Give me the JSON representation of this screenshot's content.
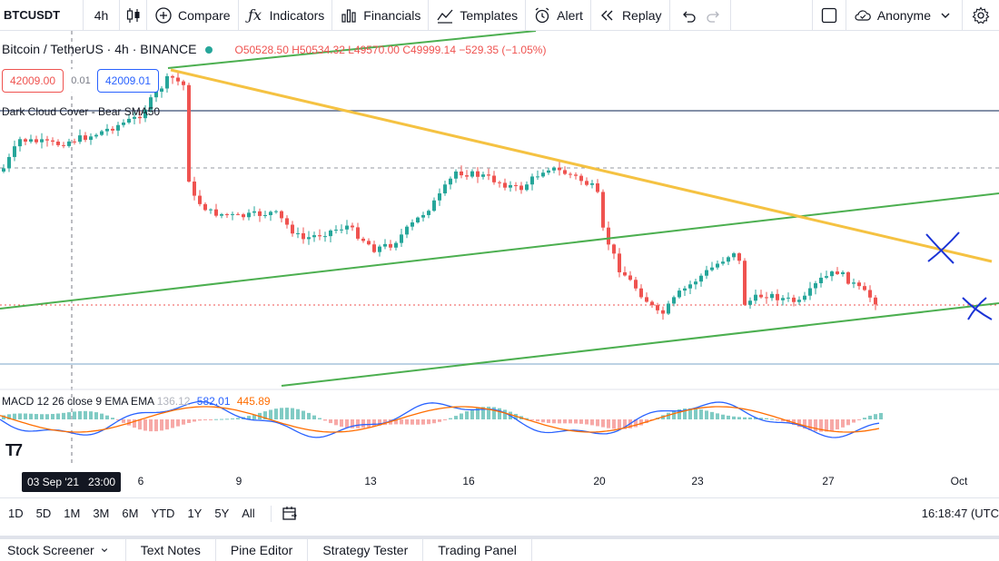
{
  "toolbar": {
    "symbol": "BTCUSDT",
    "interval": "4h",
    "compare_label": "Compare",
    "indicators_label": "Indicators",
    "financials_label": "Financials",
    "templates_label": "Templates",
    "alert_label": "Alert",
    "replay_label": "Replay",
    "user_label": "Anonyme"
  },
  "legend": {
    "title": "Bitcoin / TetherUS · 4h · BINANCE",
    "ohlc": "O50528.50 H50534.32 L49570.00 C49999.14 −529.35 (−1.05%)"
  },
  "trade": {
    "sell_price": "42009.00",
    "spread": "0.01",
    "buy_price": "42009.01"
  },
  "pattern_label": "Dark Cloud Cover - Bear SMA50",
  "macd": {
    "label": "MACD 12 26 close 9 EMA EMA",
    "hist_value": "136.12",
    "macd_value": "582.01",
    "signal_value": "445.89"
  },
  "time_axis": {
    "cursor_date": "03 Sep '21",
    "cursor_time": "23:00",
    "ticks": [
      "6",
      "9",
      "13",
      "16",
      "20",
      "23",
      "27",
      "Oct"
    ]
  },
  "ranges": [
    "1D",
    "5D",
    "1M",
    "3M",
    "6M",
    "YTD",
    "1Y",
    "5Y",
    "All"
  ],
  "clock": "16:18:47 (UTC",
  "bottom_tabs": [
    "Stock Screener",
    "Text Notes",
    "Pine Editor",
    "Strategy Tester",
    "Trading Panel"
  ],
  "colors": {
    "up": "#26a69a",
    "down": "#ef5350",
    "trend_green": "#4caf50",
    "trend_yellow": "#f5c242",
    "macd_line": "#2962ff",
    "signal_line": "#ff6d00"
  },
  "chart_data": {
    "type": "candlestick",
    "symbol": "Bitcoin / TetherUS",
    "exchange": "BINANCE",
    "interval": "4h",
    "x_ticks": [
      "6",
      "9",
      "13",
      "16",
      "20",
      "23",
      "27",
      "Oct"
    ],
    "last": {
      "open": 50528.5,
      "high": 50534.32,
      "low": 49570.0,
      "close": 49999.14,
      "change": -529.35,
      "change_pct": -1.05
    }
  }
}
